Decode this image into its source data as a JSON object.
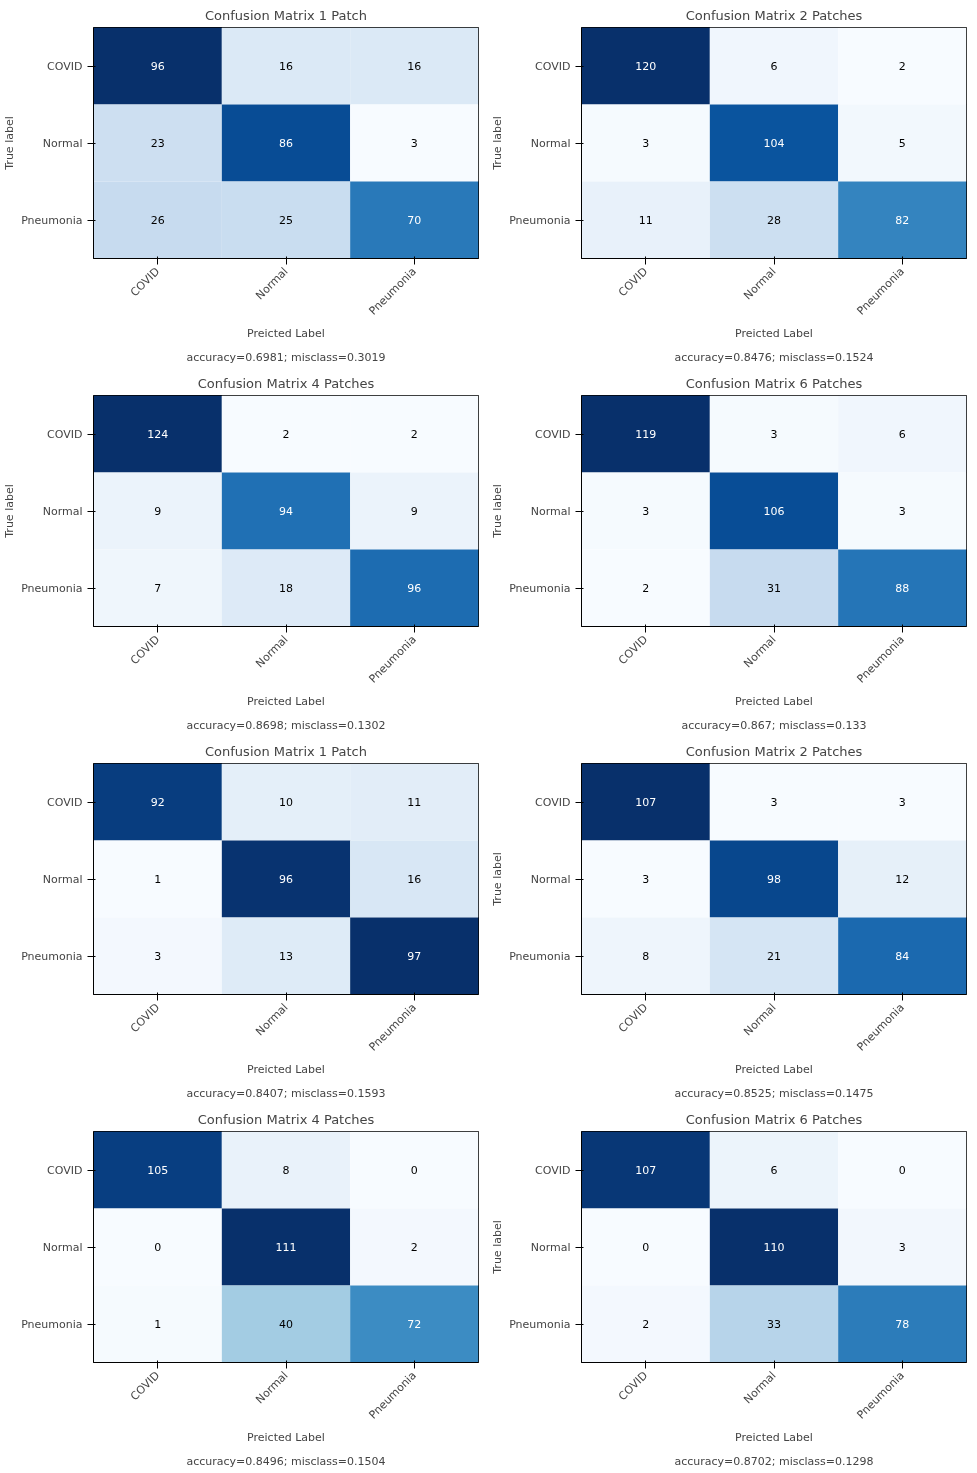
{
  "chart_data": [
    {
      "type": "heatmap",
      "title": "Confusion Matrix 1 Patch",
      "xlabel": "Preicted Label",
      "ylabel": "True label",
      "annotations": [
        "accuracy=0.6981; misclass=0.3019"
      ],
      "categories": [
        "COVID",
        "Normal",
        "Pneumonia"
      ],
      "y_categories": [
        "COVID",
        "Normal",
        "Pneumonia"
      ],
      "cells": [
        [
          96,
          16,
          16
        ],
        [
          23,
          86,
          3
        ],
        [
          26,
          25,
          70
        ]
      ],
      "data_labels": true,
      "grid": false
    },
    {
      "type": "heatmap",
      "title": "Confusion Matrix 2 Patches",
      "xlabel": "Preicted Label",
      "ylabel": "True label",
      "annotations": [
        "accuracy=0.8476; misclass=0.1524"
      ],
      "categories": [
        "COVID",
        "Normal",
        "Pneumonia"
      ],
      "y_categories": [
        "COVID",
        "Normal",
        "Pneumonia"
      ],
      "cells": [
        [
          120,
          6,
          2
        ],
        [
          3,
          104,
          5
        ],
        [
          11,
          28,
          82
        ]
      ],
      "data_labels": true,
      "grid": false
    },
    {
      "type": "heatmap",
      "title": "Confusion Matrix 4 Patches",
      "xlabel": "Preicted Label",
      "ylabel": "True label",
      "annotations": [
        "accuracy=0.8698; misclass=0.1302"
      ],
      "categories": [
        "COVID",
        "Normal",
        "Pneumonia"
      ],
      "y_categories": [
        "COVID",
        "Normal",
        "Pneumonia"
      ],
      "cells": [
        [
          124,
          2,
          2
        ],
        [
          9,
          94,
          9
        ],
        [
          7,
          18,
          96
        ]
      ],
      "data_labels": true,
      "grid": false
    },
    {
      "type": "heatmap",
      "title": "Confusion Matrix 6 Patches",
      "xlabel": "Preicted Label",
      "ylabel": "True label",
      "annotations": [
        "accuracy=0.867; misclass=0.133"
      ],
      "categories": [
        "COVID",
        "Normal",
        "Pneumonia"
      ],
      "y_categories": [
        "COVID",
        "Normal",
        "Pneumonia"
      ],
      "cells": [
        [
          119,
          3,
          6
        ],
        [
          3,
          106,
          3
        ],
        [
          2,
          31,
          88
        ]
      ],
      "data_labels": true,
      "grid": false
    },
    {
      "type": "heatmap",
      "title": "Confusion Matrix 1 Patch",
      "xlabel": "Preicted Label",
      "annotations": [
        "accuracy=0.8407; misclass=0.1593"
      ],
      "categories": [
        "COVID",
        "Normal",
        "Pneumonia"
      ],
      "y_categories": [
        "COVID",
        "Normal",
        "Pneumonia"
      ],
      "cells": [
        [
          92,
          10,
          11
        ],
        [
          1,
          96,
          16
        ],
        [
          3,
          13,
          97
        ]
      ],
      "data_labels": true,
      "grid": false
    },
    {
      "type": "heatmap",
      "title": "Confusion Matrix 2 Patches",
      "xlabel": "Preicted Label",
      "ylabel": "True label",
      "annotations": [
        "accuracy=0.8525; misclass=0.1475"
      ],
      "categories": [
        "COVID",
        "Normal",
        "Pneumonia"
      ],
      "y_categories": [
        "COVID",
        "Normal",
        "Pneumonia"
      ],
      "cells": [
        [
          107,
          3,
          3
        ],
        [
          3,
          98,
          12
        ],
        [
          8,
          21,
          84
        ]
      ],
      "data_labels": true,
      "grid": false
    },
    {
      "type": "heatmap",
      "title": "Confusion Matrix 4 Patches",
      "xlabel": "Preicted Label",
      "annotations": [
        "accuracy=0.8496; misclass=0.1504"
      ],
      "categories": [
        "COVID",
        "Normal",
        "Pneumonia"
      ],
      "y_categories": [
        "COVID",
        "Normal",
        "Pneumonia"
      ],
      "cells": [
        [
          105,
          8,
          0
        ],
        [
          0,
          111,
          2
        ],
        [
          1,
          40,
          72
        ]
      ],
      "data_labels": true,
      "grid": false
    },
    {
      "type": "heatmap",
      "title": "Confusion Matrix 6 Patches",
      "xlabel": "Preicted Label",
      "ylabel": "True label",
      "annotations": [
        "accuracy=0.8702; misclass=0.1298"
      ],
      "categories": [
        "COVID",
        "Normal",
        "Pneumonia"
      ],
      "y_categories": [
        "COVID",
        "Normal",
        "Pneumonia"
      ],
      "cells": [
        [
          107,
          6,
          0
        ],
        [
          0,
          110,
          3
        ],
        [
          2,
          33,
          78
        ]
      ],
      "data_labels": true,
      "grid": false
    }
  ]
}
